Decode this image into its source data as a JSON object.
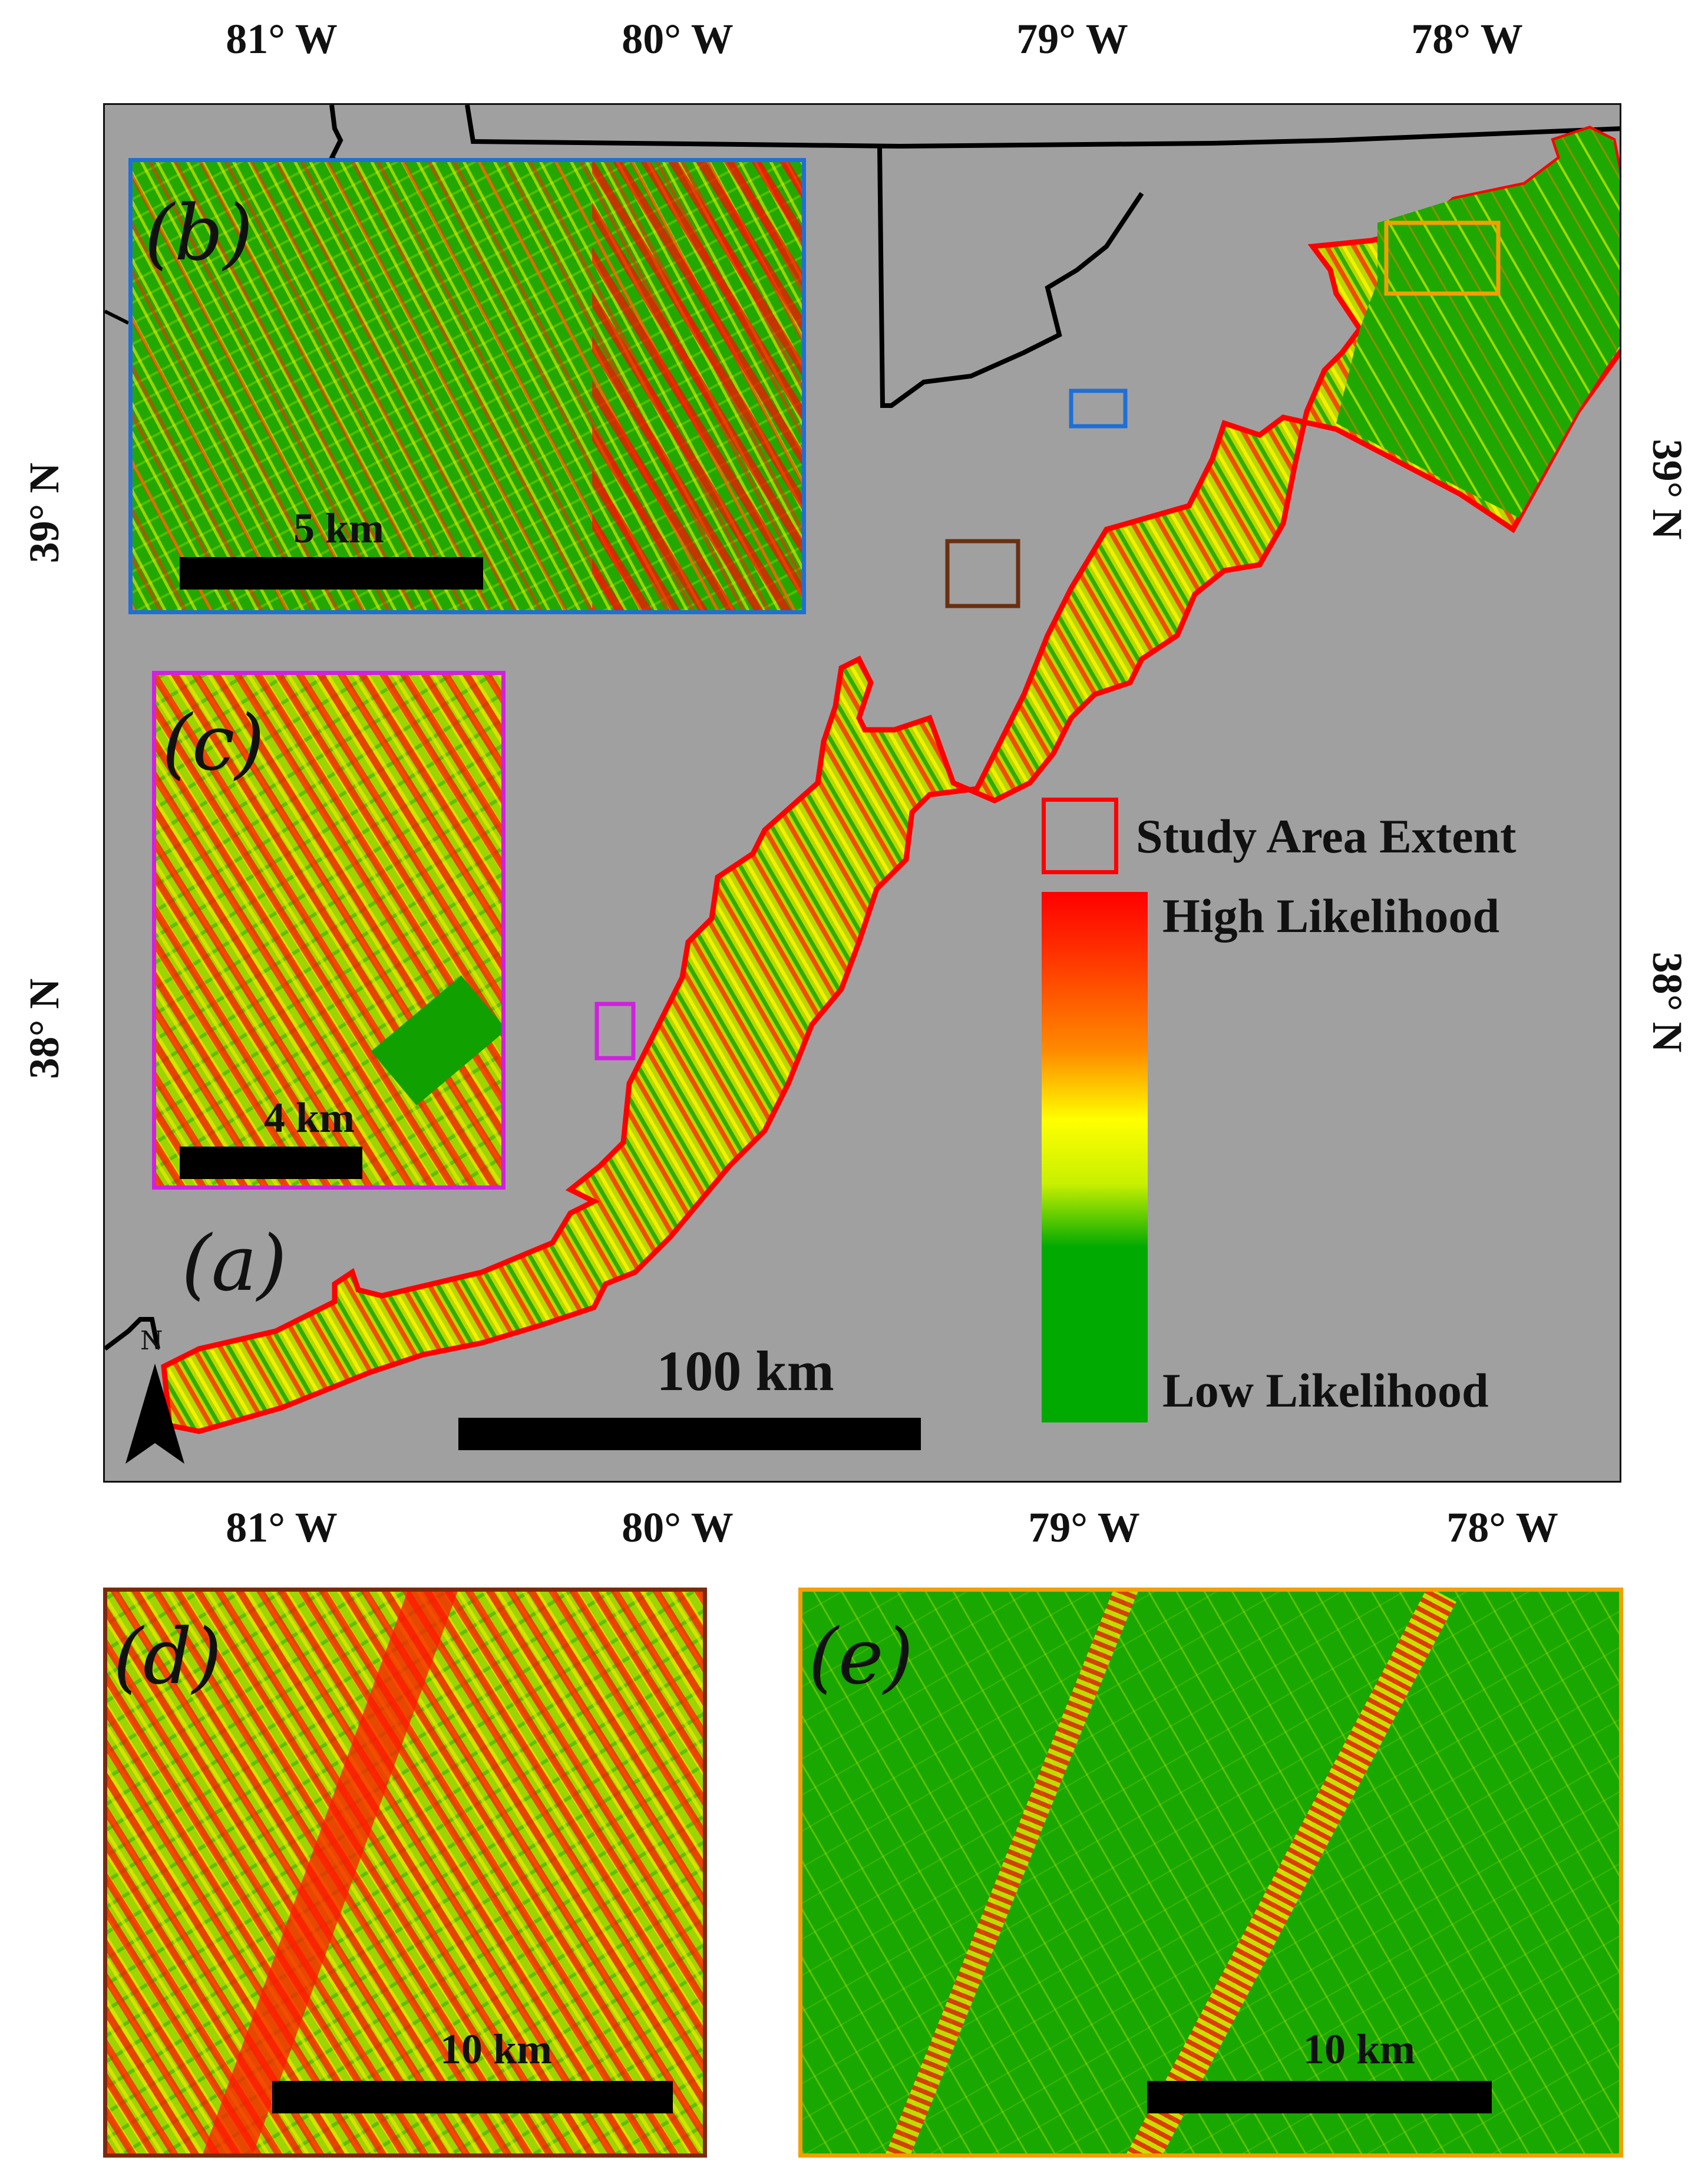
{
  "axes": {
    "longitude_labels": [
      "81° W",
      "80° W",
      "79° W",
      "78° W"
    ],
    "latitude_labels": [
      "39° N",
      "38° N"
    ]
  },
  "main_map": {
    "panel_label": "(a)",
    "scale_label": "100 km",
    "north_label": "N",
    "background_color": "#a0a0a0",
    "study_area_outline_color": "#ff0000"
  },
  "legend": {
    "study_area_label": "Study Area Extent",
    "high_label": "High Likelihood",
    "low_label": "Low Likelihood",
    "ramp_colors": [
      "#ff0000",
      "#ff8800",
      "#ffff00",
      "#00aa00"
    ]
  },
  "insets": {
    "b": {
      "label": "(b)",
      "scale_label": "5 km",
      "border_color": "#1e6fd8"
    },
    "c": {
      "label": "(c)",
      "scale_label": "4 km",
      "border_color": "#d020e0"
    },
    "d": {
      "label": "(d)",
      "scale_label": "10 km",
      "border_color": "#7a2a10"
    },
    "e": {
      "label": "(e)",
      "scale_label": "10 km",
      "border_color": "#f2a000"
    }
  },
  "locator_boxes": [
    {
      "panel": "b",
      "color": "#1e6fd8"
    },
    {
      "panel": "c",
      "color": "#d020e0"
    },
    {
      "panel": "d",
      "color": "#6a3010"
    },
    {
      "panel": "e",
      "color": "#f2a000"
    }
  ]
}
